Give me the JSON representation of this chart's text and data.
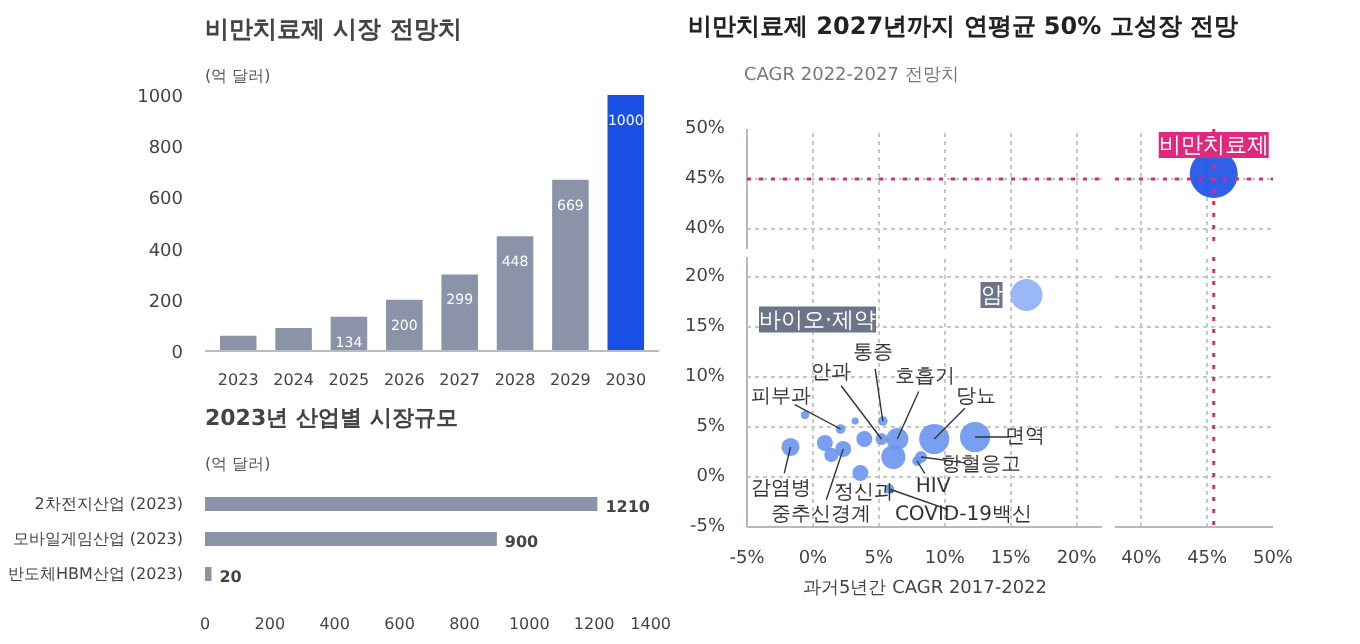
{
  "chart_data": [
    {
      "type": "bar",
      "title": "비만치료제 시장 전망치",
      "ylabel": "(억 달러)",
      "categories": [
        "2023",
        "2024",
        "2025",
        "2026",
        "2027",
        "2028",
        "2029",
        "2030"
      ],
      "values": [
        60,
        90,
        134,
        200,
        299,
        448,
        669,
        1000
      ],
      "value_labels": [
        null,
        null,
        "134",
        "200",
        "299",
        "448",
        "669",
        "1000"
      ],
      "colors": [
        "#8a93a8",
        "#8a93a8",
        "#8a93a8",
        "#8a93a8",
        "#8a93a8",
        "#8a93a8",
        "#8a93a8",
        "#1a4fe6"
      ],
      "ylim": [
        0,
        1000
      ],
      "yticks": [
        0,
        200,
        400,
        600,
        800,
        1000
      ]
    },
    {
      "type": "bar",
      "orientation": "horizontal",
      "title": "2023년 산업별 시장규모",
      "subtitle": "(억 달러)",
      "categories": [
        "2차전지산업 (2023)",
        "모바일게임산업 (2023)",
        "반도체HBM산업 (2023)"
      ],
      "values": [
        1210,
        900,
        20
      ],
      "color": "#8a93a8",
      "xlim": [
        0,
        1400
      ],
      "xticks": [
        0,
        200,
        400,
        600,
        800,
        1000,
        1200,
        1400
      ],
      "data_labels": true
    },
    {
      "type": "bubble",
      "title": "비만치료제 2027년까지 연평균 50% 고성장 전망",
      "ylabel": "CAGR 2022-2027 전망치",
      "xlim": [
        -5,
        22
      ],
      "xticks": [
        -5,
        0,
        5,
        10,
        15,
        20
      ],
      "ylim": [
        38,
        50
      ],
      "yticks": [
        {
          "value": 40,
          "label": "40%"
        },
        {
          "value": 45,
          "label": "45%"
        },
        {
          "value": 50,
          "label": "50%"
        }
      ],
      "tick_labels": "y",
      "grid": true,
      "ref_lines": [
        {
          "axis": "y",
          "value": 45,
          "color": "#e0287d",
          "line_style": "dotted"
        }
      ]
    },
    {
      "type": "bubble",
      "x": [
        45.5
      ],
      "values": [
        45.5
      ],
      "sizes": [
        1
      ],
      "colors": [
        "#1a4fe6"
      ],
      "xlim": [
        38,
        50
      ],
      "xticks": [
        40,
        45,
        50
      ],
      "ylim": [
        38,
        50
      ],
      "yticks": [
        40,
        45,
        50
      ],
      "tick_labels": false,
      "grid": true,
      "ref_lines": [
        {
          "axis": "y",
          "value": 45,
          "color": "#e0287d",
          "line_style": "dotted"
        },
        {
          "axis": "x",
          "value": 45.5,
          "color": "#e0287d",
          "line_style": "dotted"
        }
      ],
      "annotations": [
        {
          "text": "비만치료제",
          "x": 45.5,
          "y": 45.5
        }
      ]
    },
    {
      "type": "bubble",
      "xlabel": "과거5년간 CAGR 2017-2022",
      "x": [
        16.2,
        12.3,
        9.2,
        6.4,
        6.1,
        -1.7,
        0.9,
        1.4,
        2.3,
        3.6,
        3.9,
        5.2,
        5.3,
        2.1,
        -0.6,
        3.2,
        5.8,
        7.9,
        8.2
      ],
      "values": [
        18.2,
        4.0,
        3.8,
        3.8,
        2.0,
        3.0,
        3.4,
        2.2,
        2.8,
        0.4,
        3.8,
        3.8,
        5.6,
        4.8,
        6.2,
        5.6,
        -1.2,
        1.6,
        2.0
      ],
      "sizes": [
        1,
        0.89,
        0.89,
        0.48,
        0.57,
        0.32,
        0.25,
        0.2,
        0.25,
        0.25,
        0.25,
        0.14,
        0.09,
        0.09,
        0.07,
        0.05,
        0.09,
        0.09,
        0.14
      ],
      "colors": [
        "#8fb0f5",
        "#6a95ee",
        "#6a95ee",
        "#6a95ee",
        "#6a95ee",
        "#6a95ee",
        "#6a95ee",
        "#6a95ee",
        "#6a95ee",
        "#6a95ee",
        "#6a95ee",
        "#6a95ee",
        "#6a95ee",
        "#6a95ee",
        "#6a95ee",
        "#6a95ee",
        "#6a95ee",
        "#6a95ee",
        "#6a95ee"
      ],
      "xlim": [
        -5,
        22
      ],
      "xticks": [
        {
          "value": -5,
          "label": "-5%"
        },
        {
          "value": 0,
          "label": "0%"
        },
        {
          "value": 5,
          "label": "5%"
        },
        {
          "value": 10,
          "label": "10%"
        },
        {
          "value": 15,
          "label": "15%"
        },
        {
          "value": 20,
          "label": "20%"
        }
      ],
      "ylim": [
        -5,
        22
      ],
      "yticks": [
        {
          "value": -5,
          "label": "-5%"
        },
        {
          "value": 0,
          "label": "0%"
        },
        {
          "value": 5,
          "label": "5%"
        },
        {
          "value": 10,
          "label": "10%"
        },
        {
          "value": 15,
          "label": "15%"
        },
        {
          "value": 20,
          "label": "20%"
        }
      ],
      "grid": true,
      "annotations": [
        {
          "text": "암",
          "x": 16.2,
          "y": 18.2
        },
        "바이오·제약",
        {
          "text": "면역",
          "x": 12.3,
          "y": 4.0
        },
        {
          "text": "당뇨",
          "x": 9.2,
          "y": 3.8
        },
        {
          "text": "호흡기",
          "x": 6.4,
          "y": 3.8
        },
        {
          "text": "안과",
          "x": 5.2,
          "y": 3.8
        },
        {
          "text": "통증",
          "x": 5.3,
          "y": 5.6
        },
        {
          "text": "피부과",
          "x": 2.1,
          "y": 4.8
        },
        {
          "text": "감염병",
          "x": -1.7,
          "y": 3.0
        },
        {
          "text": "중추신경계",
          "x": 2.3,
          "y": 2.8
        },
        {
          "text": "정신과",
          "x": 3.6,
          "y": 0.4
        },
        {
          "text": "COVID-19백신",
          "x": 5.8,
          "y": -1.2
        },
        {
          "text": "HIV",
          "x": 7.9,
          "y": 1.6
        },
        {
          "text": "항혈응고",
          "x": 8.2,
          "y": 2.0
        }
      ]
    },
    {
      "type": "bubble",
      "xlim": [
        38,
        50
      ],
      "xticks": [
        {
          "value": 40,
          "label": "40%"
        },
        {
          "value": 45,
          "label": "45%"
        },
        {
          "value": 50,
          "label": "50%"
        }
      ],
      "ylim": [
        -5,
        22
      ],
      "yticks": [
        -5,
        0,
        5,
        10,
        15,
        20
      ],
      "tick_labels": "x",
      "grid": true,
      "ref_lines": [
        {
          "axis": "x",
          "value": 45.5,
          "color": "#e0287d",
          "line_style": "dotted"
        }
      ]
    }
  ]
}
